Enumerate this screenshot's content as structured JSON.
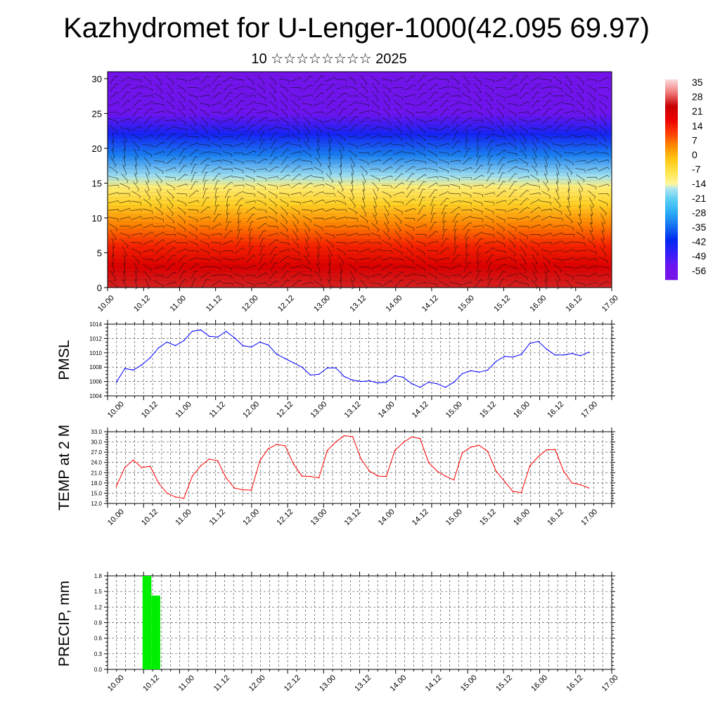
{
  "title": "Kazhydromet for U-Lenger-1000(42.095 69.97)",
  "subtitle": "10 ☆☆☆☆☆☆☆☆ 2025",
  "x_tick_labels": [
    "10.00",
    "10.12",
    "11.00",
    "11.12",
    "12.00",
    "12.12",
    "13.00",
    "13.12",
    "14.00",
    "14.12",
    "15.00",
    "15.12",
    "16.00",
    "16.12",
    "17.00"
  ],
  "colors": {
    "pmsl_line": "#0000ff",
    "temp_line": "#ff0000",
    "precip_bar": "#00ee00",
    "grid": "#555555"
  },
  "chart_data": [
    {
      "type": "heatmap",
      "name": "cross-section",
      "x": [
        "10.00",
        "10.12",
        "11.00",
        "11.12",
        "12.00",
        "12.12",
        "13.00",
        "13.12",
        "14.00",
        "14.12",
        "15.00",
        "15.12",
        "16.00",
        "16.12",
        "17.00"
      ],
      "ylim": [
        0,
        31
      ],
      "yticks": [
        "0",
        "5",
        "10",
        "15",
        "20",
        "25",
        "30"
      ],
      "colorbar": {
        "min": -63,
        "max": 42,
        "labels": [
          "35",
          "28",
          "21",
          "14",
          "7",
          "0",
          "-7",
          "-14",
          "-21",
          "-28",
          "-35",
          "-42",
          "-49",
          "-56"
        ]
      },
      "profile": [
        {
          "h": 0,
          "t": 30
        },
        {
          "h": 3,
          "t": 24
        },
        {
          "h": 6,
          "t": 17
        },
        {
          "h": 9,
          "t": 8
        },
        {
          "h": 12,
          "t": -2
        },
        {
          "h": 14.5,
          "t": -10
        },
        {
          "h": 16,
          "t": -16
        },
        {
          "h": 19,
          "t": -33
        },
        {
          "h": 22,
          "t": -45
        },
        {
          "h": 25,
          "t": -56
        },
        {
          "h": 31,
          "t": -60
        }
      ],
      "wind_barbs": true
    },
    {
      "type": "line",
      "name": "PMSL",
      "ylabel": "PMSL",
      "ylim": [
        1004,
        1014
      ],
      "yticks": [
        "1004",
        "1006",
        "1008",
        "1010",
        "1012",
        "1014"
      ],
      "x_start": 0,
      "x_step": 3,
      "values": [
        1005.9,
        1007.8,
        1007.6,
        1008.3,
        1009.3,
        1010.7,
        1011.5,
        1011.0,
        1011.7,
        1013.0,
        1013.2,
        1012.3,
        1012.2,
        1013.0,
        1012.1,
        1011.0,
        1010.8,
        1011.5,
        1011.1,
        1009.8,
        1009.2,
        1008.6,
        1008.0,
        1006.9,
        1007.0,
        1007.9,
        1007.9,
        1006.7,
        1006.2,
        1006.0,
        1006.1,
        1005.8,
        1005.9,
        1006.8,
        1006.6,
        1005.7,
        1005.2,
        1005.9,
        1005.7,
        1005.2,
        1005.9,
        1007.1,
        1007.5,
        1007.3,
        1007.6,
        1008.8,
        1009.5,
        1009.4,
        1009.8,
        1011.3,
        1011.6,
        1010.5,
        1009.7,
        1009.7,
        1009.9,
        1009.6,
        1010.1
      ]
    },
    {
      "type": "line",
      "name": "TEMP at 2 M",
      "ylabel": "TEMP at 2 M",
      "ylim": [
        12,
        33
      ],
      "yticks": [
        "12.0",
        "15.0",
        "18.0",
        "21.0",
        "24.0",
        "27.0",
        "30.0",
        "33.0"
      ],
      "x_start": 0,
      "x_step": 3,
      "values": [
        17.0,
        22.5,
        24.7,
        22.5,
        22.9,
        18.0,
        15.0,
        13.9,
        13.5,
        20.0,
        23.0,
        25.0,
        24.5,
        19.5,
        16.5,
        16.0,
        15.9,
        24.5,
        28.0,
        29.3,
        28.9,
        23.5,
        20.0,
        19.9,
        19.5,
        27.5,
        30.0,
        31.8,
        31.6,
        25.0,
        21.5,
        20.0,
        19.9,
        27.5,
        29.8,
        31.5,
        31.0,
        24.0,
        21.5,
        20.0,
        18.9,
        26.8,
        28.5,
        29.0,
        27.3,
        21.5,
        18.5,
        15.5,
        15.2,
        23.0,
        25.7,
        27.7,
        27.8,
        21.5,
        18.0,
        17.5,
        16.5
      ]
    },
    {
      "type": "bar",
      "name": "PRECIP",
      "ylabel": "PRECIP, mm",
      "ylim": [
        0,
        1.8
      ],
      "yticks": [
        "0.0",
        "0.3",
        "0.6",
        "0.9",
        "1.2",
        "1.5",
        "1.8"
      ],
      "bars": [
        {
          "x0": 6,
          "x1": 9,
          "value": 1.8
        },
        {
          "x0": 9,
          "x1": 12,
          "value": 1.42
        }
      ]
    }
  ]
}
